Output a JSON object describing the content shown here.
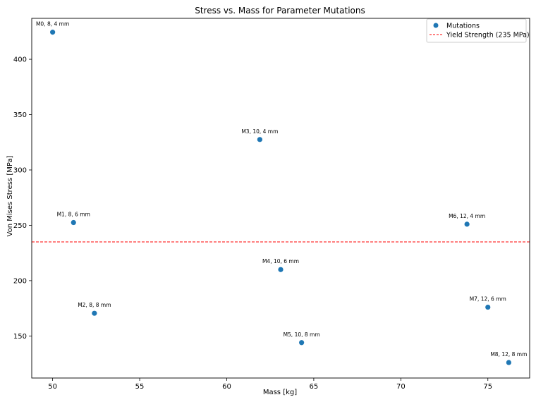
{
  "chart_data": {
    "type": "scatter",
    "title": "Stress vs. Mass for Parameter Mutations",
    "xlabel": "Mass [kg]",
    "ylabel": "Von Mises Stress [MPa]",
    "xlim": [
      48.8,
      77.4
    ],
    "ylim": [
      112,
      437
    ],
    "xticks": [
      50,
      55,
      60,
      65,
      70,
      75
    ],
    "yticks": [
      150,
      200,
      250,
      300,
      350,
      400
    ],
    "grid": false,
    "legend_position": "top-right",
    "series": [
      {
        "name": "Mutations",
        "color": "#1f77b4",
        "points": [
          {
            "x": 50.0,
            "y": 424.5,
            "label": "M0, 8, 4 mm"
          },
          {
            "x": 51.2,
            "y": 252.5,
            "label": "M1, 8, 6 mm"
          },
          {
            "x": 52.4,
            "y": 170.5,
            "label": "M2, 8, 8 mm"
          },
          {
            "x": 61.9,
            "y": 327.5,
            "label": "M3, 10, 4 mm"
          },
          {
            "x": 63.1,
            "y": 210.0,
            "label": "M4, 10, 6 mm"
          },
          {
            "x": 64.3,
            "y": 144.0,
            "label": "M5, 10, 8 mm"
          },
          {
            "x": 73.8,
            "y": 251.0,
            "label": "M6, 12, 4 mm"
          },
          {
            "x": 75.0,
            "y": 176.0,
            "label": "M7, 12, 6 mm"
          },
          {
            "x": 76.2,
            "y": 126.0,
            "label": "M8, 12, 8 mm"
          }
        ]
      }
    ],
    "reference_line": {
      "name": "Yield Strength (235 MPa)",
      "y": 235,
      "color": "#ff0000",
      "style": "dashed"
    }
  }
}
